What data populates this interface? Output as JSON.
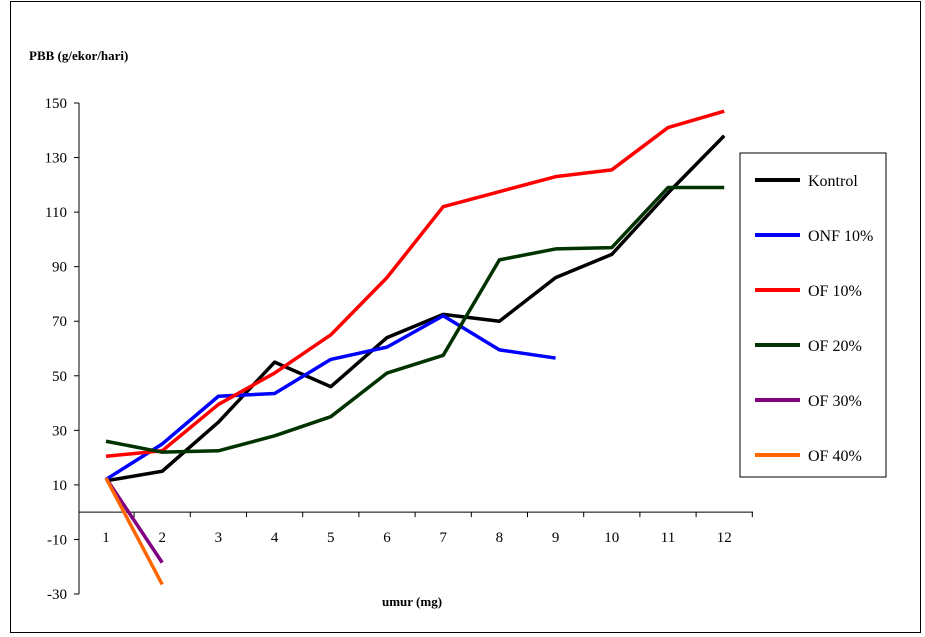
{
  "chart_data": {
    "type": "line",
    "title": "",
    "ylabel": "PBB (g/ekor/hari)",
    "xlabel": "umur (mg)",
    "ylim": [
      -30,
      150
    ],
    "yticks": [
      -30,
      -10,
      10,
      30,
      50,
      70,
      90,
      110,
      130,
      150
    ],
    "categories": [
      "1",
      "2",
      "3",
      "4",
      "5",
      "6",
      "7",
      "8",
      "9",
      "10",
      "11",
      "12"
    ],
    "grid": false,
    "legend_position": "right",
    "series": [
      {
        "name": "Kontrol",
        "color": "#000000",
        "x": [
          1,
          2,
          3,
          4,
          5,
          6,
          7,
          8,
          9,
          10,
          11,
          12
        ],
        "values": [
          11.5,
          15,
          33,
          55,
          46,
          64,
          72.5,
          70,
          86,
          94.5,
          117,
          138
        ]
      },
      {
        "name": "ONF 10%",
        "color": "#0000ff",
        "x": [
          1,
          2,
          3,
          4,
          5,
          6,
          7,
          8,
          9
        ],
        "values": [
          12,
          25,
          42.5,
          43.5,
          56,
          60.5,
          72,
          59.5,
          56.5
        ]
      },
      {
        "name": "OF 10%",
        "color": "#ff0000",
        "x": [
          1,
          2,
          3,
          4,
          5,
          6,
          7,
          8,
          9,
          10,
          11,
          12
        ],
        "values": [
          20.5,
          22.5,
          39.5,
          51,
          65,
          86,
          112,
          117.5,
          123,
          125.5,
          141,
          147
        ]
      },
      {
        "name": "OF 20%",
        "color": "#003300",
        "x": [
          1,
          2,
          3,
          4,
          5,
          6,
          7,
          8,
          9,
          10,
          11,
          12
        ],
        "values": [
          26,
          22,
          22.5,
          28,
          35,
          51,
          57.5,
          92.5,
          96.5,
          97,
          119,
          119
        ]
      },
      {
        "name": "OF 30%",
        "color": "#800080",
        "x": [
          1,
          2
        ],
        "values": [
          12.5,
          -18.5
        ]
      },
      {
        "name": "OF 40%",
        "color": "#ff6600",
        "x": [
          1,
          2
        ],
        "values": [
          12.5,
          -26.5
        ]
      }
    ]
  }
}
